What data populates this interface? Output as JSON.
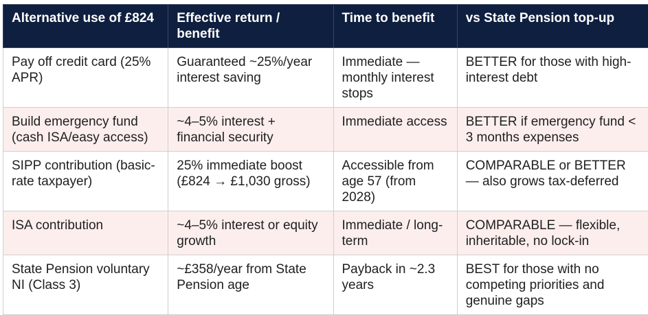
{
  "table": {
    "headers": [
      "Alternative use of £824",
      "Effective return / benefit",
      "Time to benefit",
      "vs State Pension top-up"
    ],
    "rows": [
      [
        "Pay off credit card (25% APR)",
        "Guaranteed ~25%/year interest saving",
        "Immediate — monthly interest stops",
        "BETTER for those with high-interest debt"
      ],
      [
        "Build emergency fund (cash ISA/easy access)",
        "~4–5% interest + financial security",
        "Immediate access",
        "BETTER if emergency fund < 3 months expenses"
      ],
      [
        "SIPP contribution (basic-rate taxpayer)",
        "25% immediate boost (£824 → £1,030 gross)",
        "Accessible from age 57 (from 2028)",
        "COMPARABLE or BETTER — also grows tax-deferred"
      ],
      [
        "ISA contribution",
        "~4–5% interest or equity growth",
        "Immediate / long-term",
        "COMPARABLE — flexible, inheritable, no lock-in"
      ],
      [
        "State Pension voluntary NI (Class 3)",
        "~£358/year from State Pension age",
        "Payback in ~2.3 years",
        "BEST for those with no competing priorities and genuine gaps"
      ]
    ]
  }
}
